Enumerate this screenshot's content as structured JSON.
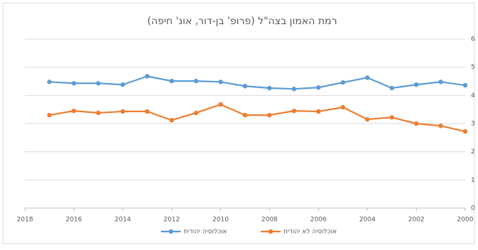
{
  "chart_data": {
    "type": "line",
    "title": "רמת האמון בצה\"ל (פרופ' בן-דור, אונ' חיפה)",
    "x": [
      2017,
      2016,
      2015,
      2014,
      2013,
      2012,
      2011,
      2010,
      2009,
      2008,
      2007,
      2006,
      2005,
      2004,
      2003,
      2002,
      2001,
      2000
    ],
    "series": [
      {
        "name": "אוכלוסיה יהודית",
        "color": "#5b9bd5",
        "values": [
          4.48,
          4.43,
          4.43,
          4.38,
          4.68,
          4.51,
          4.51,
          4.48,
          4.33,
          4.26,
          4.23,
          4.28,
          4.46,
          4.63,
          4.26,
          4.38,
          4.48,
          4.36
        ]
      },
      {
        "name": "אוכלוסיה לא יהודית",
        "color": "#ed7d31",
        "values": [
          3.3,
          3.45,
          3.38,
          3.43,
          3.43,
          3.12,
          3.38,
          3.68,
          3.3,
          3.3,
          3.45,
          3.43,
          3.58,
          3.15,
          3.22,
          3.0,
          2.92,
          2.72
        ]
      }
    ],
    "xlim": [
      2018,
      2000
    ],
    "xticks": [
      2018,
      2016,
      2014,
      2012,
      2010,
      2008,
      2006,
      2004,
      2002,
      2000
    ],
    "ylim": [
      0,
      6
    ],
    "yticks": [
      0,
      1,
      2,
      3,
      4,
      5,
      6
    ],
    "grid": true,
    "y_axis_side": "right",
    "legend": "bottom"
  }
}
